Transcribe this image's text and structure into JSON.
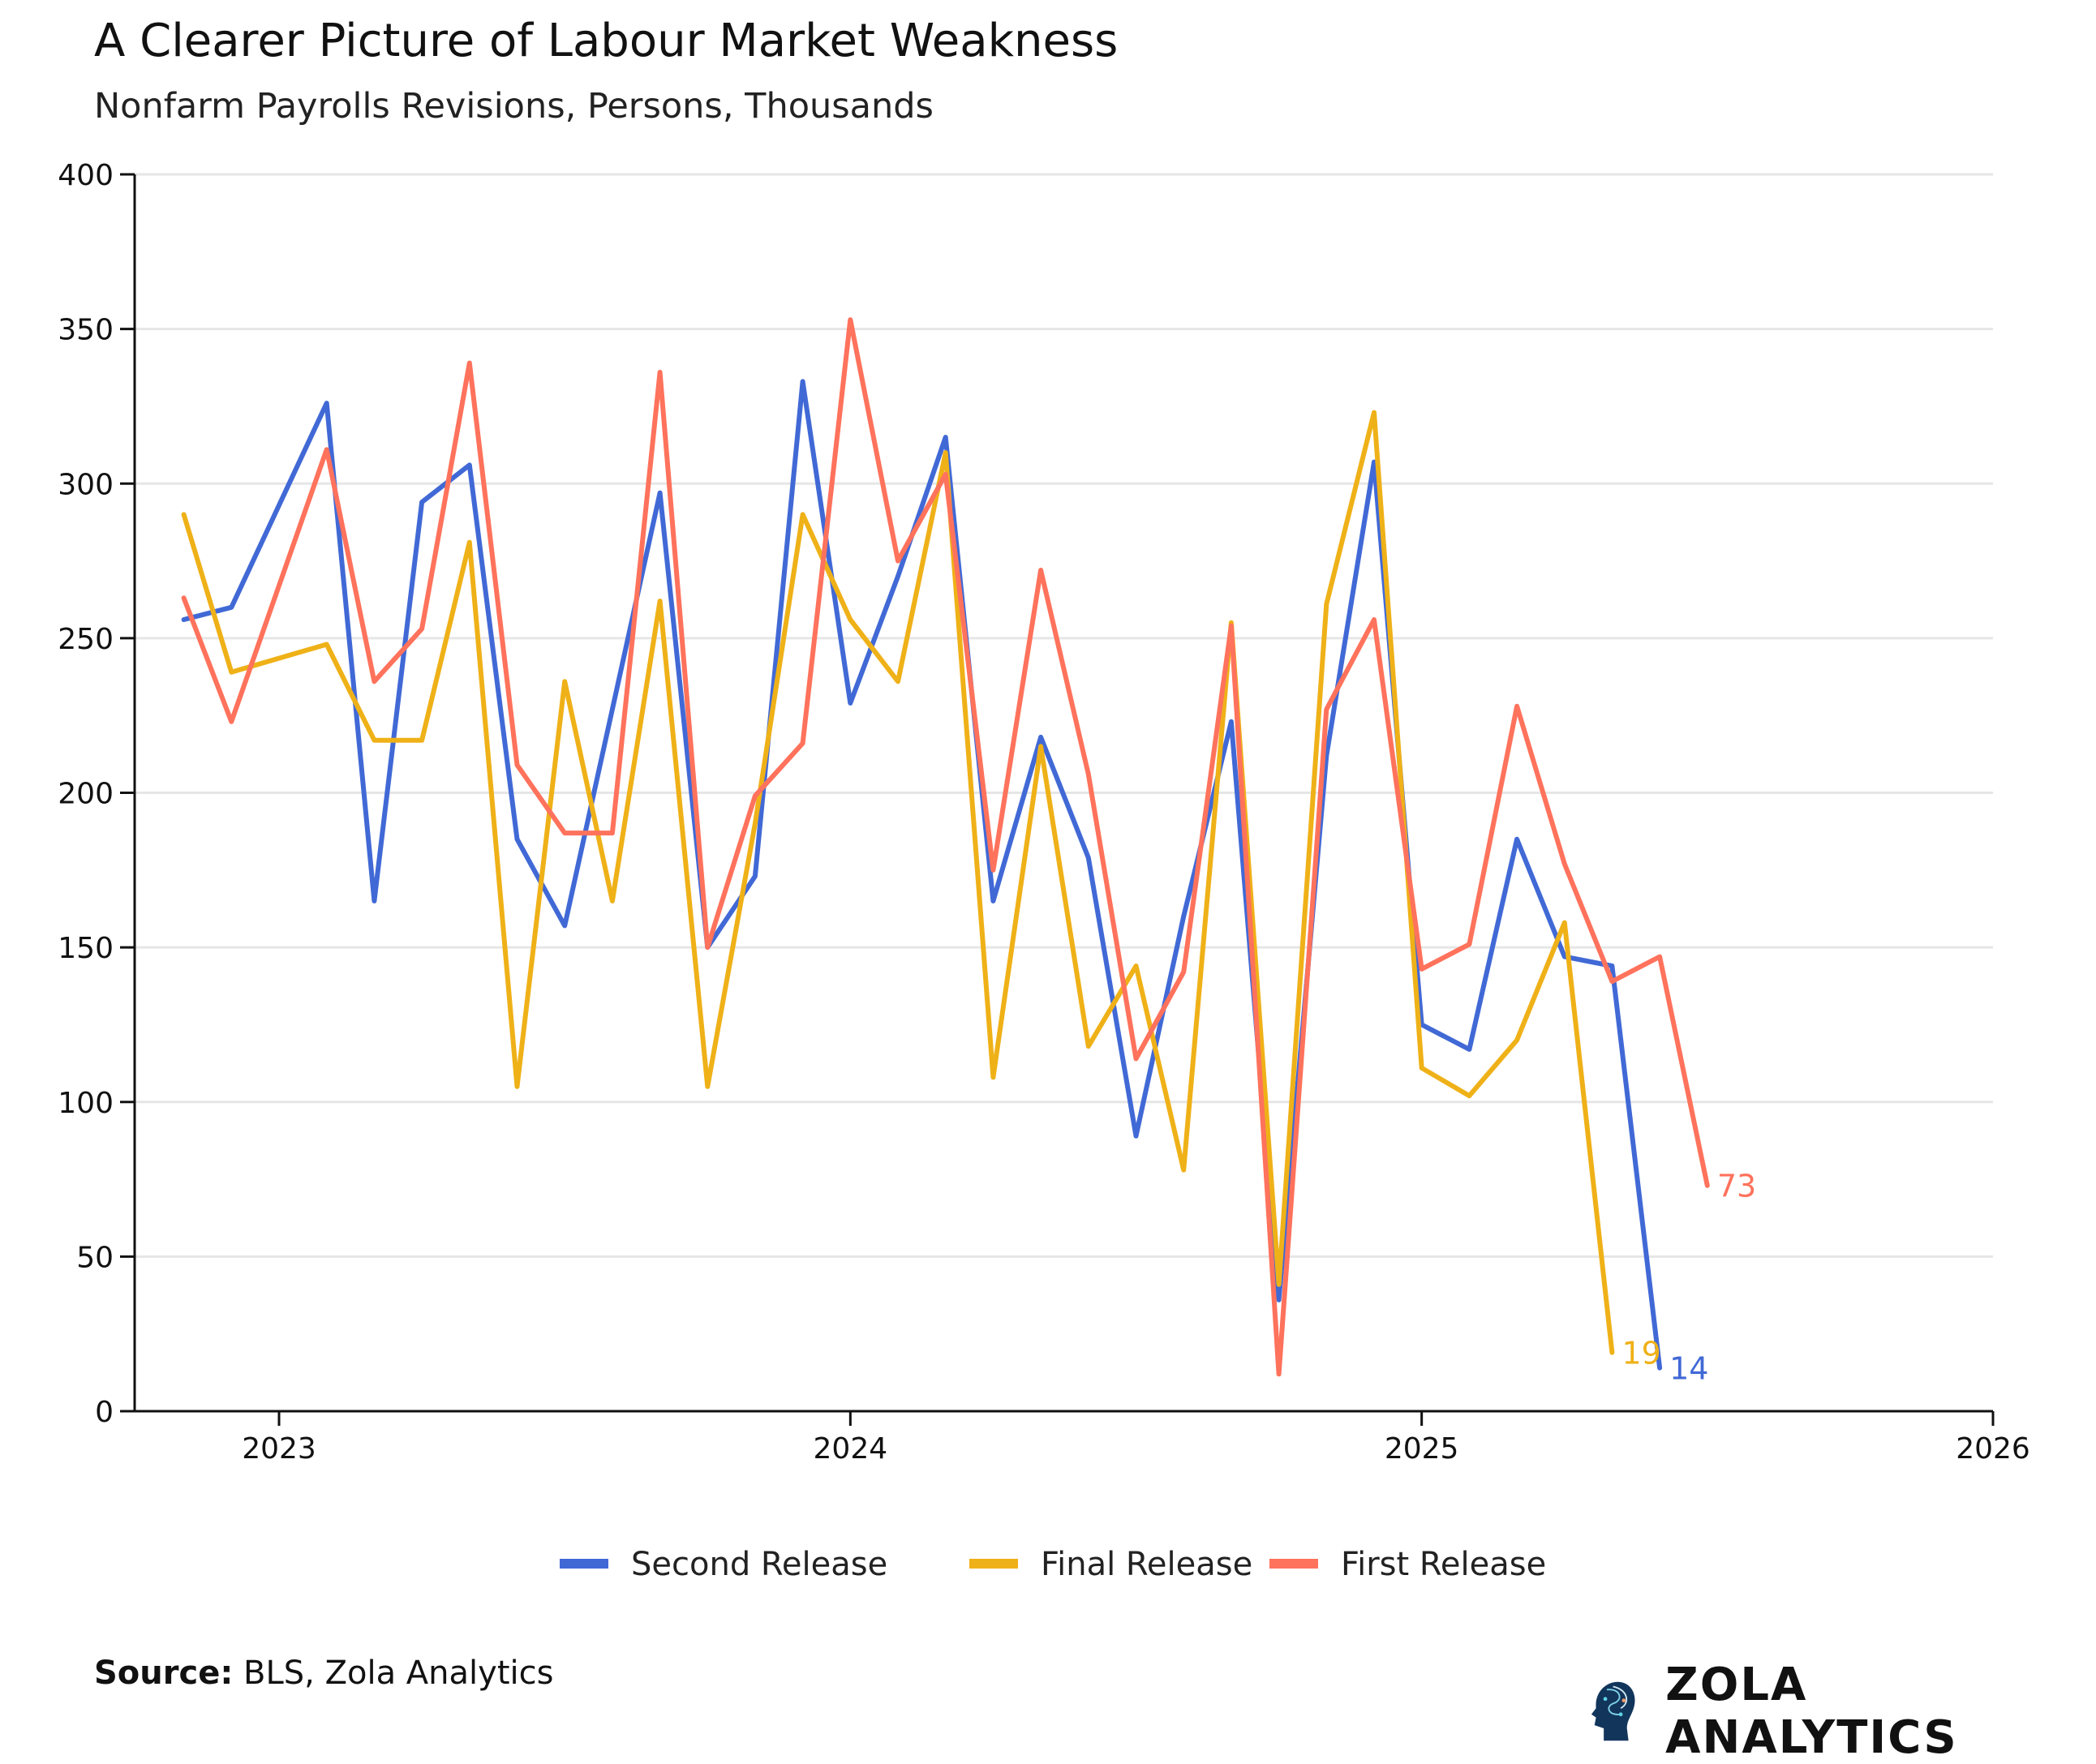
{
  "chart_data": {
    "type": "line",
    "title": "A Clearer Picture of Labour Market Weakness",
    "subtitle": "Nonfarm Payrolls Revisions, Persons, Thousands",
    "xlabel": "",
    "ylabel": "",
    "ylim": [
      0,
      400
    ],
    "xlim": [
      "2022-10",
      "2026-01"
    ],
    "yticks": [
      0,
      50,
      100,
      150,
      200,
      250,
      300,
      350,
      400
    ],
    "xticks": [
      "2023",
      "2024",
      "2025",
      "2026"
    ],
    "grid": "horizontal",
    "legend_placement": "bottom",
    "series": [
      {
        "name": "Second Release",
        "color": "#4169d6",
        "end_label": "14",
        "points": [
          [
            "2022-11",
            256
          ],
          [
            "2022-12",
            260
          ],
          [
            "2023-02",
            326
          ],
          [
            "2023-03",
            165
          ],
          [
            "2023-04",
            294
          ],
          [
            "2023-05",
            306
          ],
          [
            "2023-06",
            185
          ],
          [
            "2023-07",
            157
          ],
          [
            "2023-09",
            297
          ],
          [
            "2023-10",
            150
          ],
          [
            "2023-11",
            173
          ],
          [
            "2023-12",
            333
          ],
          [
            "2024-01",
            229
          ],
          [
            "2024-02",
            270
          ],
          [
            "2024-03",
            315
          ],
          [
            "2024-04",
            165
          ],
          [
            "2024-05",
            218
          ],
          [
            "2024-06",
            179
          ],
          [
            "2024-07",
            89
          ],
          [
            "2024-08",
            160
          ],
          [
            "2024-09",
            223
          ],
          [
            "2024-10",
            36
          ],
          [
            "2024-11",
            212
          ],
          [
            "2024-12",
            307
          ],
          [
            "2025-01",
            125
          ],
          [
            "2025-02",
            117
          ],
          [
            "2025-03",
            185
          ],
          [
            "2025-04",
            147
          ],
          [
            "2025-05",
            144
          ],
          [
            "2025-06",
            14
          ]
        ]
      },
      {
        "name": "Final Release",
        "color": "#efb118",
        "end_label": "19",
        "points": [
          [
            "2022-11",
            290
          ],
          [
            "2022-12",
            239
          ],
          [
            "2023-02",
            248
          ],
          [
            "2023-03",
            217
          ],
          [
            "2023-04",
            217
          ],
          [
            "2023-05",
            281
          ],
          [
            "2023-06",
            105
          ],
          [
            "2023-07",
            236
          ],
          [
            "2023-08",
            165
          ],
          [
            "2023-09",
            262
          ],
          [
            "2023-10",
            105
          ],
          [
            "2023-11",
            190
          ],
          [
            "2023-12",
            290
          ],
          [
            "2024-01",
            256
          ],
          [
            "2024-02",
            236
          ],
          [
            "2024-03",
            310
          ],
          [
            "2024-04",
            108
          ],
          [
            "2024-05",
            215
          ],
          [
            "2024-06",
            118
          ],
          [
            "2024-07",
            144
          ],
          [
            "2024-08",
            78
          ],
          [
            "2024-09",
            255
          ],
          [
            "2024-10",
            41
          ],
          [
            "2024-11",
            261
          ],
          [
            "2024-12",
            323
          ],
          [
            "2025-01",
            111
          ],
          [
            "2025-02",
            102
          ],
          [
            "2025-03",
            120
          ],
          [
            "2025-04",
            158
          ],
          [
            "2025-05",
            19
          ]
        ]
      },
      {
        "name": "First Release",
        "color": "#ff725c",
        "end_label": "73",
        "points": [
          [
            "2022-11",
            263
          ],
          [
            "2022-12",
            223
          ],
          [
            "2023-02",
            311
          ],
          [
            "2023-03",
            236
          ],
          [
            "2023-04",
            253
          ],
          [
            "2023-05",
            339
          ],
          [
            "2023-06",
            209
          ],
          [
            "2023-07",
            187
          ],
          [
            "2023-08",
            187
          ],
          [
            "2023-09",
            336
          ],
          [
            "2023-10",
            150
          ],
          [
            "2023-11",
            199
          ],
          [
            "2023-12",
            216
          ],
          [
            "2024-01",
            353
          ],
          [
            "2024-02",
            275
          ],
          [
            "2024-03",
            303
          ],
          [
            "2024-04",
            175
          ],
          [
            "2024-05",
            272
          ],
          [
            "2024-06",
            206
          ],
          [
            "2024-07",
            114
          ],
          [
            "2024-08",
            142
          ],
          [
            "2024-09",
            254
          ],
          [
            "2024-10",
            12
          ],
          [
            "2024-11",
            227
          ],
          [
            "2024-12",
            256
          ],
          [
            "2025-01",
            143
          ],
          [
            "2025-02",
            151
          ],
          [
            "2025-03",
            228
          ],
          [
            "2025-04",
            177
          ],
          [
            "2025-05",
            139
          ],
          [
            "2025-06",
            147
          ],
          [
            "2025-07",
            73
          ]
        ]
      }
    ]
  },
  "footer": {
    "source_label": "Source:",
    "source_text": " BLS, Zola Analytics",
    "brand": "ZOLA ANALYTICS"
  }
}
